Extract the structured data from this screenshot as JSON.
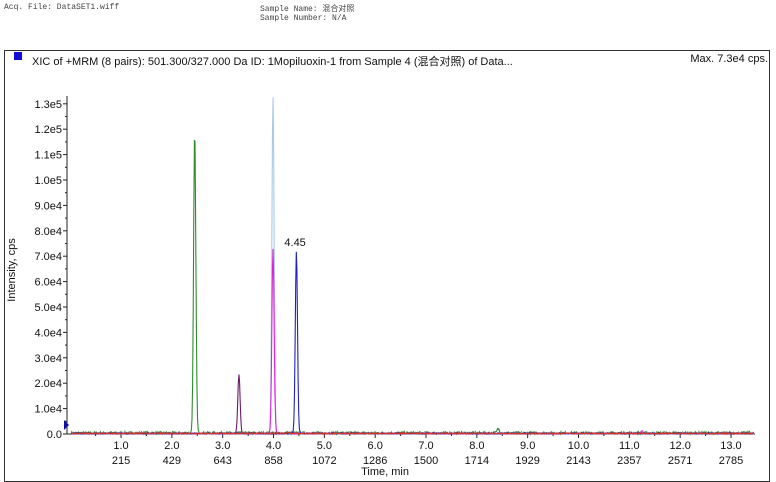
{
  "header": {
    "acq_file": "Acq. File: DataSET1.wiff",
    "sample_name": "Sample Name: 混合对照",
    "sample_number": "Sample Number: N/A"
  },
  "chart_data": {
    "type": "line",
    "title": "XIC of +MRM (8 pairs): 501.300/327.000 Da ID: 1Mopiluoxin-1 from Sample 4 (混合对照) of Data...",
    "max_label": "Max. 7.3e4 cps.",
    "legend_color": "#1010d0",
    "xlabel": "Time, min",
    "ylabel": "Intensity, cps",
    "xlim": [
      0,
      13.47
    ],
    "ylim": [
      0,
      130000
    ],
    "x_ticks": [
      "1.0",
      "2.0",
      "3.0",
      "4.0",
      "5.0",
      "6.0",
      "7.0",
      "8.0",
      "9.0",
      "10.0",
      "11.0",
      "12.0",
      "13.0"
    ],
    "x_ticks_scan": [
      "215",
      "429",
      "643",
      "858",
      "1072",
      "1286",
      "1500",
      "1714",
      "1929",
      "2143",
      "2357",
      "2571",
      "2785"
    ],
    "y_ticks": [
      "0.0",
      "1.0e4",
      "2.0e4",
      "3.0e4",
      "4.0e4",
      "5.0e4",
      "6.0e4",
      "7.0e4",
      "8.0e4",
      "9.0e4",
      "1.0e5",
      "1.1e5",
      "1.2e5",
      "1.3e5"
    ],
    "grid": false,
    "series": [
      {
        "color": "#2e8b2e",
        "peaks": [
          {
            "rt": 2.45,
            "height": 119000
          },
          {
            "rt": 8.42,
            "height": 1600
          }
        ]
      },
      {
        "color": "#6a1a6a",
        "peaks": [
          {
            "rt": 3.32,
            "height": 23000
          }
        ]
      },
      {
        "color": "#a9c8ea",
        "peaks": [
          {
            "rt": 3.99,
            "height": 133000
          }
        ]
      },
      {
        "color": "#e020e0",
        "peaks": [
          {
            "rt": 3.99,
            "height": 73000
          },
          {
            "rt": 11.25,
            "height": 900
          }
        ]
      },
      {
        "color": "#2020c0",
        "peaks": [
          {
            "rt": 4.45,
            "height": 72000
          }
        ]
      },
      {
        "color": "#e03020",
        "peaks": [
          {
            "rt": 4.28,
            "height": 500
          }
        ]
      }
    ],
    "annotations": [
      {
        "text": "4.45",
        "x": 4.45,
        "y": 72000
      }
    ]
  }
}
